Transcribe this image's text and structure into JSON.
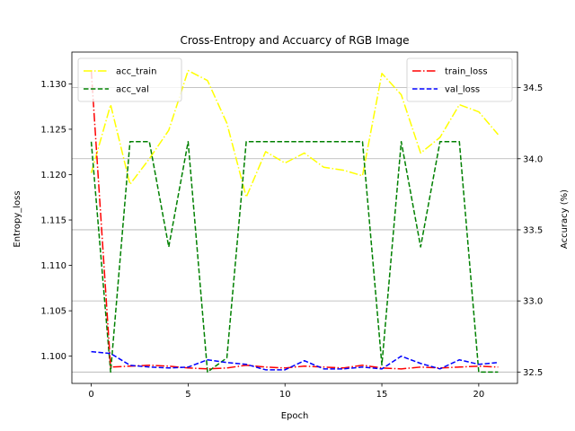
{
  "chart_data": {
    "type": "line",
    "title": "Cross-Entropy and Accuarcy of RGB Image",
    "xlabel": "Epoch",
    "ylabel_left": "Entropy_loss",
    "ylabel_right": "Accuracy (%)",
    "x": [
      0,
      1,
      2,
      3,
      4,
      5,
      6,
      7,
      8,
      9,
      10,
      11,
      12,
      13,
      14,
      15,
      16,
      17,
      18,
      19,
      20,
      21
    ],
    "xlim": [
      -1,
      22
    ],
    "xticks": [
      0,
      5,
      10,
      15,
      20
    ],
    "ylim_left": [
      1.097,
      1.1335
    ],
    "yticks_left": [
      1.1,
      1.105,
      1.11,
      1.115,
      1.12,
      1.125,
      1.13
    ],
    "ylim_right": [
      32.42,
      34.75
    ],
    "yticks_right": [
      32.5,
      33.0,
      33.5,
      34.0,
      34.5
    ],
    "grid": "horizontal lines at right-axis ticks",
    "legend_left": {
      "placement": "top-left",
      "entries": [
        "acc_train",
        "acc_val"
      ]
    },
    "legend_right": {
      "placement": "top-right",
      "entries": [
        "train_loss",
        "val_loss"
      ]
    },
    "series": [
      {
        "name": "acc_train",
        "axis": "right",
        "color": "#ffff00",
        "dash": "dashdot",
        "values": [
          33.9,
          34.38,
          33.82,
          34.0,
          34.2,
          34.62,
          34.55,
          34.25,
          33.73,
          34.05,
          33.97,
          34.04,
          33.94,
          33.92,
          33.88,
          34.6,
          34.45,
          34.04,
          34.15,
          34.38,
          34.33,
          34.17
        ]
      },
      {
        "name": "acc_val",
        "axis": "right",
        "color": "#008000",
        "dash": "dashed",
        "values": [
          34.12,
          32.5,
          34.12,
          34.12,
          33.38,
          34.12,
          32.5,
          32.6,
          34.12,
          34.12,
          34.12,
          34.12,
          34.12,
          34.12,
          34.12,
          32.55,
          34.12,
          33.38,
          34.12,
          34.12,
          32.5,
          32.5
        ]
      },
      {
        "name": "train_loss",
        "axis": "left",
        "color": "#ff0000",
        "dash": "dashdot",
        "values": [
          1.1315,
          1.0988,
          1.0989,
          1.099,
          1.0989,
          1.0987,
          1.0986,
          1.0987,
          1.099,
          1.0988,
          1.0987,
          1.0989,
          1.0988,
          1.0987,
          1.099,
          1.0987,
          1.0986,
          1.0988,
          1.0987,
          1.0988,
          1.0989,
          1.0988
        ]
      },
      {
        "name": "val_loss",
        "axis": "left",
        "color": "#0000ff",
        "dash": "dashed",
        "values": [
          1.1005,
          1.1003,
          1.099,
          1.0988,
          1.0987,
          1.0988,
          1.0996,
          1.0993,
          1.0991,
          1.0985,
          1.0985,
          1.0995,
          1.0986,
          1.0986,
          1.0988,
          1.0986,
          1.1,
          1.0992,
          1.0986,
          1.0996,
          1.0991,
          1.0993
        ]
      }
    ]
  }
}
